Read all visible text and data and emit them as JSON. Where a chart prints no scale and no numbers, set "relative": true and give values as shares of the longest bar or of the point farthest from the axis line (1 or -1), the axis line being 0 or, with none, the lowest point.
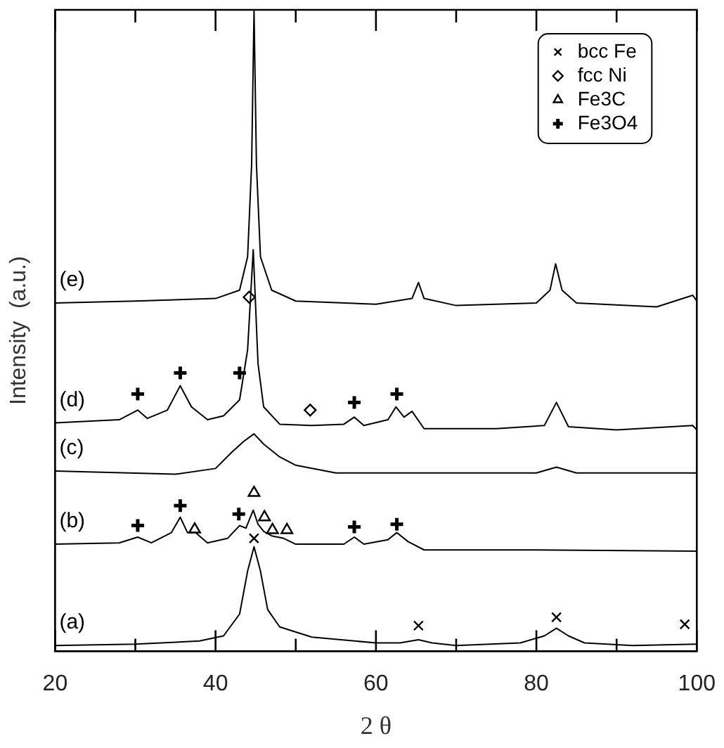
{
  "chart_data": {
    "type": "line",
    "relative": true,
    "xlabel": "2 θ",
    "ylabel": "Intensity  (a.u.)",
    "xlim": [
      20,
      100
    ],
    "xticks": [
      20,
      {
        "value": 30,
        "label": null
      },
      40,
      {
        "value": 50,
        "label": null
      },
      60,
      {
        "value": 70,
        "label": null
      },
      80,
      {
        "value": 90,
        "label": null
      },
      100
    ],
    "legend": "top right",
    "line_style": "solid",
    "annotations": [
      "(a)",
      "(b)",
      "(c)",
      "(d)",
      "(e)"
    ],
    "series": [
      {
        "color": "#000000",
        "x": [
          20,
          30,
          38,
          41,
          43,
          44,
          44.8,
          45.6,
          46.5,
          48,
          52,
          60,
          63,
          65.3,
          67,
          70,
          78,
          81,
          82.5,
          84,
          86,
          92,
          100
        ],
        "values": [
          0.009,
          0.011,
          0.016,
          0.024,
          0.058,
          0.125,
          0.163,
          0.125,
          0.065,
          0.038,
          0.022,
          0.013,
          0.013,
          0.018,
          0.013,
          0.009,
          0.013,
          0.024,
          0.036,
          0.024,
          0.013,
          0.009,
          0.011
        ]
      },
      {
        "color": "#000000",
        "x": [
          20,
          28,
          30.3,
          32,
          34.5,
          35.6,
          36.5,
          37.5,
          39,
          41.5,
          43,
          43.8,
          44.7,
          45.3,
          46,
          47,
          48.5,
          50,
          56,
          57.3,
          58.5,
          61.5,
          62.6,
          64,
          66,
          80,
          100
        ],
        "values": [
          0.167,
          0.169,
          0.178,
          0.169,
          0.185,
          0.209,
          0.185,
          0.185,
          0.169,
          0.176,
          0.196,
          0.192,
          0.22,
          0.198,
          0.187,
          0.18,
          0.176,
          0.167,
          0.167,
          0.178,
          0.167,
          0.174,
          0.185,
          0.171,
          0.158,
          0.158,
          0.156
        ]
      },
      {
        "color": "#000000",
        "x": [
          20,
          35,
          40,
          42,
          43.5,
          44.8,
          46,
          48,
          50,
          55,
          70,
          80,
          82.5,
          85,
          100
        ],
        "values": [
          0.281,
          0.276,
          0.285,
          0.31,
          0.327,
          0.339,
          0.323,
          0.303,
          0.29,
          0.278,
          0.278,
          0.278,
          0.287,
          0.278,
          0.278
        ]
      },
      {
        "color": "#000000",
        "x": [
          20,
          28,
          30.3,
          31.5,
          34,
          35.6,
          37,
          39,
          41,
          43,
          44,
          44.7,
          45.3,
          46,
          48,
          52,
          56,
          57.3,
          58.5,
          61.5,
          62.5,
          63.5,
          64.5,
          66,
          75,
          81,
          82.5,
          84,
          90,
          99.5,
          100
        ],
        "values": [
          0.356,
          0.361,
          0.376,
          0.363,
          0.376,
          0.414,
          0.381,
          0.361,
          0.367,
          0.392,
          0.47,
          0.626,
          0.448,
          0.381,
          0.354,
          0.352,
          0.354,
          0.365,
          0.352,
          0.361,
          0.381,
          0.365,
          0.374,
          0.347,
          0.347,
          0.352,
          0.388,
          0.35,
          0.345,
          0.352,
          0.345
        ]
      },
      {
        "color": "#000000",
        "x": [
          20,
          30,
          40,
          43,
          44,
          44.5,
          44.8,
          45.1,
          45.6,
          47,
          50,
          60,
          64.5,
          65.3,
          66,
          70,
          80,
          81.7,
          82.4,
          83.2,
          85,
          95,
          99.5,
          100
        ],
        "values": [
          0.543,
          0.546,
          0.55,
          0.563,
          0.615,
          0.759,
          1,
          0.759,
          0.615,
          0.563,
          0.546,
          0.541,
          0.55,
          0.575,
          0.55,
          0.539,
          0.543,
          0.563,
          0.604,
          0.563,
          0.543,
          0.537,
          0.555,
          0.546
        ]
      },
      {
        "name": "bcc Fe",
        "type": "scatter",
        "marker": "x",
        "color": "#000000",
        "x": [
          44.8,
          65.3,
          82.5,
          98.5
        ],
        "values": [
          0.176,
          0.04,
          0.053,
          0.042
        ]
      },
      {
        "name": "fcc Ni",
        "type": "scatter",
        "marker": "diamond",
        "color": "#000000",
        "x": [
          44.2,
          51.8
        ],
        "values": [
          0.552,
          0.376
        ]
      },
      {
        "name": "Fe3C",
        "type": "scatter",
        "marker": "triangle",
        "color": "#000000",
        "x": [
          37.4,
          44.8,
          46.1,
          47.1,
          48.9
        ],
        "values": [
          0.19,
          0.247,
          0.209,
          0.189,
          0.189
        ]
      },
      {
        "name": "Fe3O4",
        "type": "scatter",
        "marker": "cross",
        "color": "#000000",
        "x": [
          30.3,
          35.6,
          42.9,
          57.3,
          62.6,
          30.3,
          35.6,
          43,
          57.3,
          62.6
        ],
        "values": [
          0.196,
          0.227,
          0.214,
          0.194,
          0.198,
          0.401,
          0.434,
          0.434,
          0.388,
          0.401
        ]
      }
    ]
  }
}
